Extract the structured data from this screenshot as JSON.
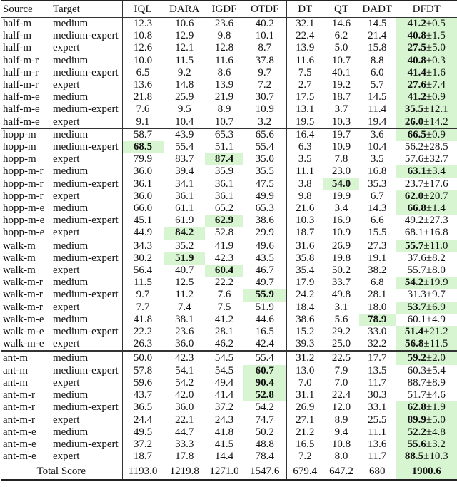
{
  "headers": [
    "Source",
    "Target",
    "IQL",
    "DARA",
    "IGDF",
    "OTDF",
    "DT",
    "QT",
    "DADT",
    "DFDT"
  ],
  "highlight_color": "#d8f5d2",
  "groups": [
    {
      "rows": [
        {
          "source": "half-m",
          "target": "medium",
          "values": [
            "12.3",
            "10.6",
            "23.6",
            "40.2",
            "32.1",
            "14.6",
            "14.5"
          ],
          "best": [],
          "dfdt": {
            "mean": "41.2",
            "std": "±0.5",
            "best": true
          }
        },
        {
          "source": "half-m",
          "target": "medium-expert",
          "values": [
            "10.8",
            "12.9",
            "9.8",
            "10.1",
            "22.4",
            "6.2",
            "21.4"
          ],
          "best": [],
          "dfdt": {
            "mean": "40.8",
            "std": "±1.5",
            "best": true
          }
        },
        {
          "source": "half-m",
          "target": "expert",
          "values": [
            "12.6",
            "12.1",
            "12.8",
            "8.7",
            "13.9",
            "5.0",
            "15.8"
          ],
          "best": [],
          "dfdt": {
            "mean": "27.5",
            "std": "±5.0",
            "best": true
          }
        },
        {
          "source": "half-m-r",
          "target": "medium",
          "values": [
            "10.0",
            "11.5",
            "11.6",
            "37.8",
            "11.6",
            "10.7",
            "8.8"
          ],
          "best": [],
          "dfdt": {
            "mean": "40.8",
            "std": "±0.3",
            "best": true
          }
        },
        {
          "source": "half-m-r",
          "target": "medium-expert",
          "values": [
            "6.5",
            "9.2",
            "8.6",
            "9.7",
            "7.5",
            "40.1",
            "6.0"
          ],
          "best": [],
          "dfdt": {
            "mean": "41.4",
            "std": "±1.6",
            "best": true
          }
        },
        {
          "source": "half-m-r",
          "target": "expert",
          "values": [
            "13.6",
            "14.8",
            "13.9",
            "7.2",
            "2.7",
            "19.2",
            "5.7"
          ],
          "best": [],
          "dfdt": {
            "mean": "27.6",
            "std": "±7.4",
            "best": true
          }
        },
        {
          "source": "half-m-e",
          "target": "medium",
          "values": [
            "21.8",
            "25.9",
            "21.9",
            "30.7",
            "17.5",
            "18.7",
            "14.5"
          ],
          "best": [],
          "dfdt": {
            "mean": "41.2",
            "std": "±0.9",
            "best": true
          }
        },
        {
          "source": "half-m-e",
          "target": "medium-expert",
          "values": [
            "7.6",
            "9.5",
            "8.9",
            "10.9",
            "13.1",
            "3.7",
            "11.4"
          ],
          "best": [],
          "dfdt": {
            "mean": "35.5",
            "std": "±12.1",
            "best": true
          }
        },
        {
          "source": "half-m-e",
          "target": "expert",
          "values": [
            "9.1",
            "10.4",
            "10.7",
            "3.2",
            "19.5",
            "10.3",
            "19.4"
          ],
          "best": [],
          "dfdt": {
            "mean": "26.0",
            "std": "±14.2",
            "best": true
          }
        }
      ]
    },
    {
      "rows": [
        {
          "source": "hopp-m",
          "target": "medium",
          "values": [
            "58.7",
            "43.9",
            "65.3",
            "65.6",
            "16.4",
            "19.7",
            "3.6"
          ],
          "best": [],
          "dfdt": {
            "mean": "66.5",
            "std": "±0.9",
            "best": true
          }
        },
        {
          "source": "hopp-m",
          "target": "medium-expert",
          "values": [
            "68.5",
            "55.4",
            "51.1",
            "55.4",
            "6.3",
            "10.9",
            "10.4"
          ],
          "best": [
            0
          ],
          "dfdt": {
            "mean": "56.2",
            "std": "±28.5",
            "best": false
          }
        },
        {
          "source": "hopp-m",
          "target": "expert",
          "values": [
            "79.9",
            "83.7",
            "87.4",
            "35.0",
            "3.5",
            "7.8",
            "3.5"
          ],
          "best": [
            2
          ],
          "dfdt": {
            "mean": "57.6",
            "std": "±32.7",
            "best": false
          }
        },
        {
          "source": "hopp-m-r",
          "target": "medium",
          "values": [
            "36.0",
            "39.4",
            "35.9",
            "35.5",
            "11.1",
            "23.0",
            "16.8"
          ],
          "best": [],
          "dfdt": {
            "mean": "63.1",
            "std": "±3.4",
            "best": true
          }
        },
        {
          "source": "hopp-m-r",
          "target": "medium-expert",
          "values": [
            "36.1",
            "34.1",
            "36.1",
            "47.5",
            "3.8",
            "54.0",
            "35.3"
          ],
          "best": [
            5
          ],
          "dfdt": {
            "mean": "23.7",
            "std": "±17.6",
            "best": false
          }
        },
        {
          "source": "hopp-m-r",
          "target": "expert",
          "values": [
            "36.0",
            "36.1",
            "36.1",
            "49.9",
            "9.8",
            "19.9",
            "6.7"
          ],
          "best": [],
          "dfdt": {
            "mean": "62.0",
            "std": "±20.7",
            "best": true
          }
        },
        {
          "source": "hopp-m-e",
          "target": "medium",
          "values": [
            "66.0",
            "61.1",
            "65.2",
            "65.3",
            "21.6",
            "3.4",
            "14.3"
          ],
          "best": [],
          "dfdt": {
            "mean": "66.8",
            "std": "±1.4",
            "best": true
          }
        },
        {
          "source": "hopp-m-e",
          "target": "medium-expert",
          "values": [
            "45.1",
            "61.9",
            "62.9",
            "38.6",
            "10.3",
            "16.9",
            "6.6"
          ],
          "best": [
            2
          ],
          "dfdt": {
            "mean": "49.2",
            "std": "±27.3",
            "best": false
          }
        },
        {
          "source": "hopp-m-e",
          "target": "expert",
          "values": [
            "44.9",
            "84.2",
            "52.8",
            "29.9",
            "18.7",
            "10.9",
            "15.5"
          ],
          "best": [
            1
          ],
          "dfdt": {
            "mean": "68.1",
            "std": "±16.8",
            "best": false
          }
        }
      ]
    },
    {
      "rows": [
        {
          "source": "walk-m",
          "target": "medium",
          "values": [
            "34.3",
            "35.2",
            "41.9",
            "49.6",
            "31.6",
            "26.9",
            "27.3"
          ],
          "best": [],
          "dfdt": {
            "mean": "55.7",
            "std": "±11.0",
            "best": true
          }
        },
        {
          "source": "walk-m",
          "target": "medium-expert",
          "values": [
            "30.2",
            "51.9",
            "42.3",
            "43.5",
            "35.8",
            "19.8",
            "19.1"
          ],
          "best": [
            1
          ],
          "dfdt": {
            "mean": "37.6",
            "std": "±8.2",
            "best": false
          }
        },
        {
          "source": "walk-m",
          "target": "expert",
          "values": [
            "56.4",
            "40.7",
            "60.4",
            "46.7",
            "35.4",
            "50.2",
            "38.2"
          ],
          "best": [
            2
          ],
          "dfdt": {
            "mean": "55.7",
            "std": "±8.0",
            "best": false
          }
        },
        {
          "source": "walk-m-r",
          "target": "medium",
          "values": [
            "11.5",
            "12.5",
            "22.2",
            "49.7",
            "17.9",
            "33.7",
            "6.8"
          ],
          "best": [],
          "dfdt": {
            "mean": "54.2",
            "std": "±19.9",
            "best": true
          }
        },
        {
          "source": "walk-m-r",
          "target": "medium-expert",
          "values": [
            "9.7",
            "11.2",
            "7.6",
            "55.9",
            "24.2",
            "49.8",
            "28.1"
          ],
          "best": [
            3
          ],
          "dfdt": {
            "mean": "31.3",
            "std": "±9.7",
            "best": false
          }
        },
        {
          "source": "walk-m-r",
          "target": "expert",
          "values": [
            "7.7",
            "7.4",
            "7.5",
            "51.9",
            "18.4",
            "3.1",
            "18.0"
          ],
          "best": [],
          "dfdt": {
            "mean": "53.7",
            "std": "±6.9",
            "best": true
          }
        },
        {
          "source": "walk-m-e",
          "target": "medium",
          "values": [
            "41.8",
            "38.1",
            "41.2",
            "44.6",
            "38.6",
            "5.6",
            "78.9"
          ],
          "best": [
            6
          ],
          "dfdt": {
            "mean": "60.1",
            "std": "±4.9",
            "best": false
          }
        },
        {
          "source": "walk-m-e",
          "target": "medium-expert",
          "values": [
            "22.2",
            "23.6",
            "28.1",
            "16.5",
            "15.2",
            "29.2",
            "33.0"
          ],
          "best": [],
          "dfdt": {
            "mean": "51.4",
            "std": "±21.2",
            "best": true
          }
        },
        {
          "source": "walk-m-e",
          "target": "expert",
          "values": [
            "26.3",
            "36.0",
            "46.2",
            "42.4",
            "39.3",
            "25.0",
            "32.2"
          ],
          "best": [],
          "dfdt": {
            "mean": "56.8",
            "std": "±11.5",
            "best": true
          }
        }
      ]
    },
    {
      "rows": [
        {
          "source": "ant-m",
          "target": "medium",
          "values": [
            "50.0",
            "42.3",
            "54.5",
            "55.4",
            "31.2",
            "22.5",
            "17.7"
          ],
          "best": [],
          "dfdt": {
            "mean": "59.2",
            "std": "±2.0",
            "best": true
          }
        },
        {
          "source": "ant-m",
          "target": "medium-expert",
          "values": [
            "57.8",
            "54.1",
            "54.5",
            "60.7",
            "13.0",
            "7.9",
            "13.5"
          ],
          "best": [
            3
          ],
          "dfdt": {
            "mean": "60.3",
            "std": "±5.4",
            "best": false
          }
        },
        {
          "source": "ant-m",
          "target": "expert",
          "values": [
            "59.6",
            "54.2",
            "49.4",
            "90.4",
            "7.0",
            "7.0",
            "11.7"
          ],
          "best": [
            3
          ],
          "dfdt": {
            "mean": "88.7",
            "std": "±8.9",
            "best": false
          }
        },
        {
          "source": "ant-m-r",
          "target": "medium",
          "values": [
            "43.7",
            "42.0",
            "41.4",
            "52.8",
            "31.1",
            "22.4",
            "30.3"
          ],
          "best": [
            3
          ],
          "dfdt": {
            "mean": "51.7",
            "std": "±4.6",
            "best": false
          }
        },
        {
          "source": "ant-m-r",
          "target": "medium-expert",
          "values": [
            "36.5",
            "36.0",
            "37.2",
            "54.2",
            "26.9",
            "12.0",
            "33.1"
          ],
          "best": [],
          "dfdt": {
            "mean": "62.8",
            "std": "±1.9",
            "best": true
          }
        },
        {
          "source": "ant-m-r",
          "target": "expert",
          "values": [
            "24.4",
            "22.1",
            "24.3",
            "74.7",
            "27.1",
            "8.9",
            "25.5"
          ],
          "best": [],
          "dfdt": {
            "mean": "89.9",
            "std": "±5.0",
            "best": true
          }
        },
        {
          "source": "ant-m-e",
          "target": "medium",
          "values": [
            "49.5",
            "44.7",
            "41.8",
            "50.2",
            "21.2",
            "9.4",
            "11.1"
          ],
          "best": [],
          "dfdt": {
            "mean": "52.2",
            "std": "±4.8",
            "best": true
          }
        },
        {
          "source": "ant-m-e",
          "target": "medium-expert",
          "values": [
            "37.2",
            "33.3",
            "41.5",
            "48.8",
            "16.5",
            "10.8",
            "13.6"
          ],
          "best": [],
          "dfdt": {
            "mean": "55.6",
            "std": "±3.2",
            "best": true
          }
        },
        {
          "source": "ant-m-e",
          "target": "expert",
          "values": [
            "18.7",
            "17.8",
            "14.4",
            "78.4",
            "7.2",
            "8.0",
            "11.7"
          ],
          "best": [],
          "dfdt": {
            "mean": "88.5",
            "std": "±10.3",
            "best": true
          }
        }
      ]
    }
  ],
  "total": {
    "label": "Total Score",
    "values": [
      "1193.0",
      "1219.8",
      "1271.0",
      "1547.6",
      "679.4",
      "647.2",
      "680"
    ],
    "dfdt": "1900.6"
  }
}
